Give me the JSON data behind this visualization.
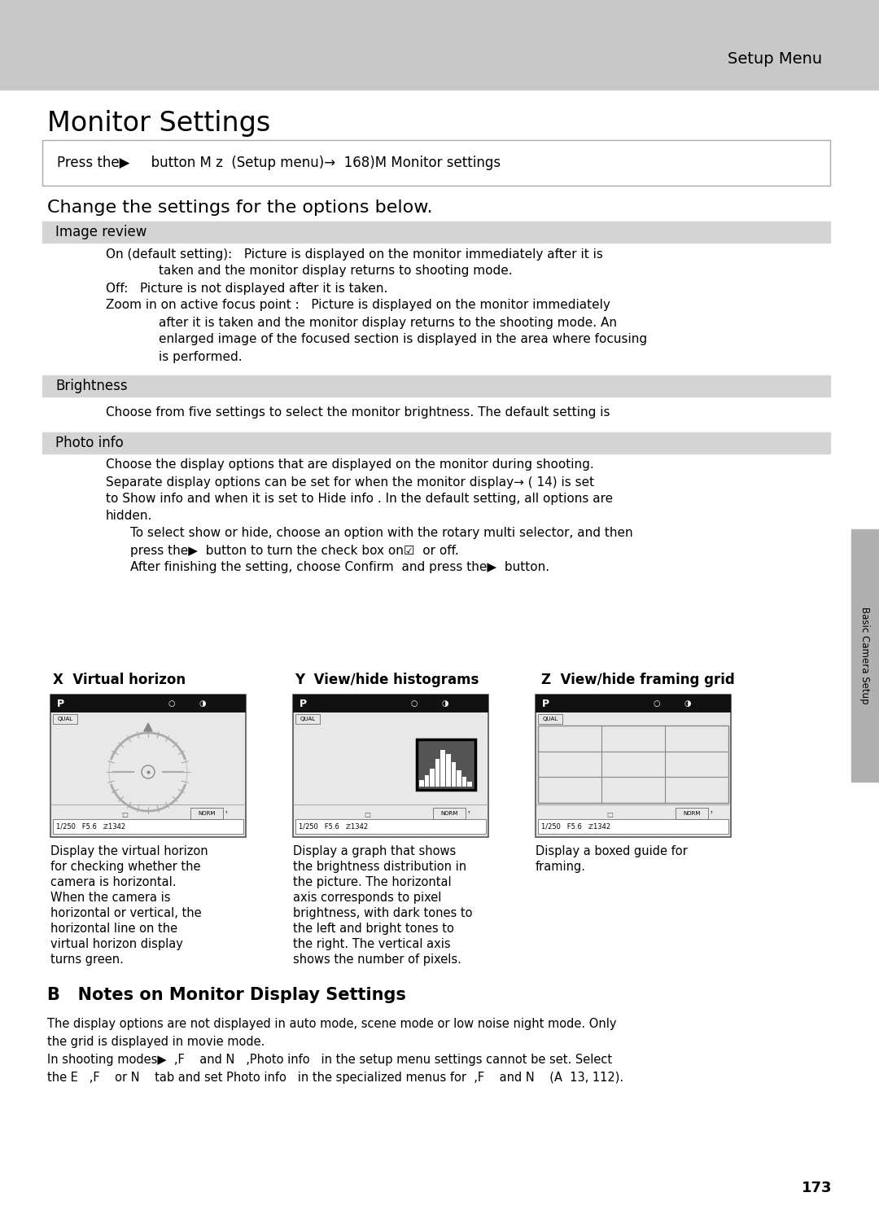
{
  "page_bg": "#ffffff",
  "header_bg": "#c8c8c8",
  "header_text": "Setup Menu",
  "title": "Monitor Settings",
  "press_box_text": "Press the▶     button M z  (Setup menu)→  168)M Monitor settings",
  "subtitle": "Change the settings for the options below.",
  "section_bg": "#d4d4d4",
  "image_review_lines": [
    [
      "On (default setting):   Picture is displayed on the monitor immediately after it is",
      130,
      false
    ],
    [
      "taken and the monitor display returns to shooting mode.",
      195,
      false
    ],
    [
      "Off:   Picture is not displayed after it is taken.",
      130,
      false
    ],
    [
      "Zoom in on active focus point :   Picture is displayed on the monitor immediately",
      130,
      false
    ],
    [
      "after it is taken and the monitor display returns to the shooting mode. An",
      195,
      false
    ],
    [
      "enlarged image of the focused section is displayed in the area where focusing",
      195,
      false
    ],
    [
      "is performed.",
      195,
      false
    ]
  ],
  "brightness_text": "Choose from five settings to select the monitor brightness. The default setting is",
  "photo_info_lines": [
    [
      "Choose the display options that are displayed on the monitor during shooting.",
      130,
      false
    ],
    [
      "Separate display options can be set for when the monitor display→ ( 14) is set",
      130,
      false
    ],
    [
      "to Show info and when it is set to Hide info . In the default setting, all options are",
      130,
      false
    ],
    [
      "hidden.",
      130,
      false
    ],
    [
      "To select show or hide, choose an option with the rotary multi selector, and then",
      160,
      false
    ],
    [
      "press the▶  button to turn the check box on☑  or off.",
      160,
      false
    ],
    [
      "After finishing the setting, choose Confirm  and press the▶  button.",
      160,
      false
    ]
  ],
  "diagram_labels": [
    "X  Virtual horizon",
    "Y  View/hide histograms",
    "Z  View/hide framing grid"
  ],
  "desc_col1": [
    "Display the virtual horizon",
    "for checking whether the",
    "camera is horizontal.",
    "When the camera is",
    "horizontal or vertical, the",
    "horizontal line on the",
    "virtual horizon display",
    "turns green."
  ],
  "desc_col2": [
    "Display a graph that shows",
    "the brightness distribution in",
    "the picture. The horizontal",
    "axis corresponds to pixel",
    "brightness, with dark tones to",
    "the left and bright tones to",
    "the right. The vertical axis",
    "shows the number of pixels."
  ],
  "desc_col3": [
    "Display a boxed guide for",
    "framing."
  ],
  "notes_title": "B   Notes on Monitor Display Settings",
  "notes_lines": [
    "The display options are not displayed in auto mode, scene mode or low noise night mode. Only",
    "the grid is displayed in movie mode.",
    "In shooting modes▶  ,F    and N   ,Photo info   in the setup menu settings cannot be set. Select",
    "the E   ,F    or N    tab and set Photo info   in the specialized menus for  ,F    and N    (A  13, 112)."
  ],
  "page_number": "173",
  "sidebar_text": "Basic Camera Setup",
  "sidebar_bg": "#b0b0b0"
}
